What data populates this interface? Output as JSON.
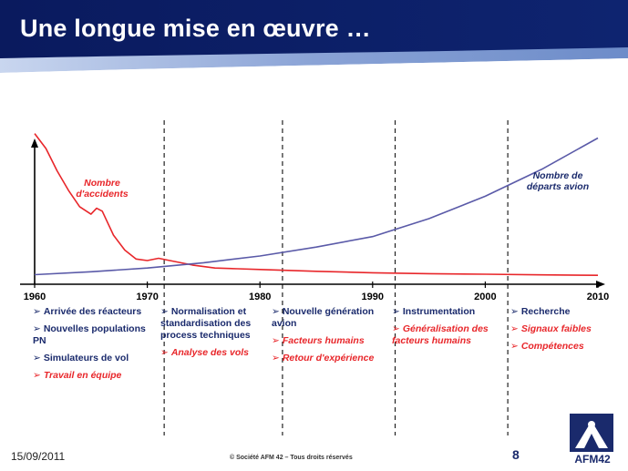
{
  "slide": {
    "title": "Une longue mise en œuvre …",
    "date": "15/09/2011",
    "copyright": "© Société AFM 42 – Tous droits réservés",
    "page_number": "8",
    "logo_text": "AFM42"
  },
  "colors": {
    "header_dark": "#0a1a5e",
    "header_light": "#8aa3d6",
    "accidents_line": "#e8262a",
    "departures_line": "#5a5aa8",
    "bullet_blue": "#1a2a6c",
    "bullet_red": "#e8262a"
  },
  "chart_data": {
    "type": "line",
    "xlim": [
      1960,
      2010
    ],
    "ylim": [
      0,
      100
    ],
    "x_ticks": [
      1960,
      1970,
      1980,
      1990,
      2000,
      2010
    ],
    "x_tick_labels": [
      "1960",
      "1970",
      "1980",
      "1990",
      "2000",
      "2010"
    ],
    "vertical_dividers": [
      1971.5,
      1982,
      1992,
      2002
    ],
    "series": [
      {
        "name": "Nombre d'accidents",
        "color": "#e8262a",
        "x": [
          1960,
          1961,
          1962,
          1963,
          1964,
          1965,
          1965.5,
          1966,
          1967,
          1968,
          1969,
          1970,
          1971,
          1972,
          1974,
          1976,
          1978,
          1980,
          1985,
          1990,
          1995,
          2000,
          2005,
          2010
        ],
        "y": [
          96,
          86,
          71,
          58,
          47,
          42,
          46,
          44,
          28,
          18,
          12,
          11,
          12.5,
          11,
          8,
          6,
          5.5,
          5,
          3.8,
          2.8,
          2.2,
          1.8,
          1.4,
          1.1
        ]
      },
      {
        "name": "Nombre de départs avion",
        "color": "#5a5aa8",
        "x": [
          1960,
          1965,
          1970,
          1975,
          1980,
          1985,
          1990,
          1995,
          2000,
          2005,
          2010
        ],
        "y": [
          1.5,
          3.5,
          6,
          9.5,
          14,
          20,
          27,
          39,
          54,
          72,
          93
        ]
      }
    ],
    "annotations": [
      {
        "text": "Nombre",
        "color": "#e8262a"
      },
      {
        "text": "d'accidents",
        "color": "#e8262a"
      },
      {
        "text": "Nombre de",
        "color": "#1a2a6c"
      },
      {
        "text": "départs avion",
        "color": "#1a2a6c"
      }
    ]
  },
  "columns": [
    {
      "items": [
        {
          "text": "Arrivée des réacteurs",
          "style": "blue"
        },
        {
          "text": "Nouvelles populations PN",
          "style": "blue"
        },
        {
          "text": "Simulateurs de vol",
          "style": "blue"
        },
        {
          "text": "Travail en équipe",
          "style": "red"
        }
      ]
    },
    {
      "items": [
        {
          "text": "Normalisation et standardisation des process techniques",
          "style": "blue"
        },
        {
          "text": "Analyse des vols",
          "style": "red"
        }
      ]
    },
    {
      "items": [
        {
          "text": "Nouvelle génération avion",
          "style": "blue"
        },
        {
          "text": "Facteurs humains",
          "style": "red"
        },
        {
          "text": "Retour d'expérience",
          "style": "red"
        }
      ]
    },
    {
      "items": [
        {
          "text": "Instrumentation",
          "style": "blue"
        },
        {
          "text": "Généralisation des facteurs humains",
          "style": "red"
        }
      ]
    },
    {
      "items": [
        {
          "text": "Recherche",
          "style": "blue"
        },
        {
          "text": "Signaux faibles",
          "style": "red"
        },
        {
          "text": "Compétences",
          "style": "red"
        }
      ]
    }
  ]
}
